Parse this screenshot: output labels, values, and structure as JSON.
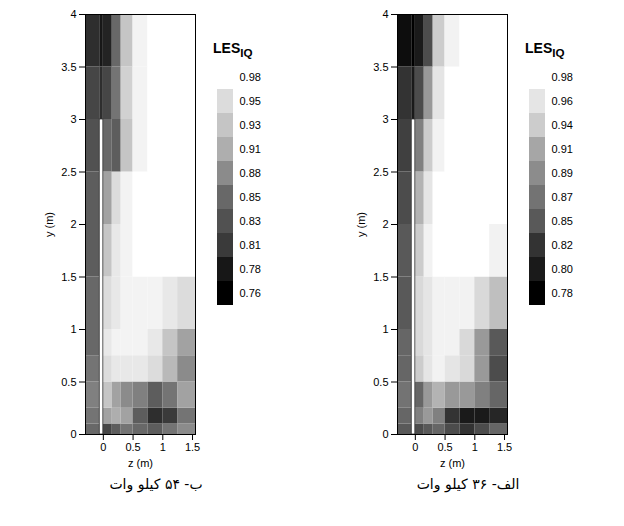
{
  "chart_data": [
    {
      "type": "heatmap",
      "caption": "ب- ۵۴ کیلو وات",
      "x_label": "z (m)",
      "y_label": "y (m)",
      "xlim": [
        -0.3,
        1.55
      ],
      "ylim": [
        0,
        4
      ],
      "xticks": [
        0,
        0.5,
        1,
        1.5
      ],
      "yticks": [
        0,
        0.5,
        1,
        1.5,
        2,
        2.5,
        3,
        3.5,
        4
      ],
      "z_edges": [
        -0.3,
        -0.06,
        0,
        0.15,
        0.3,
        0.5,
        0.75,
        1.0,
        1.25,
        1.55
      ],
      "y_edges": [
        0,
        0.1,
        0.25,
        0.5,
        0.75,
        1,
        1.5,
        2,
        2.5,
        3,
        3.5,
        4
      ],
      "cells": [
        [
          0.85,
          0.8,
          0.82,
          0.84,
          0.86,
          0.85,
          0.84,
          0.86,
          0.88
        ],
        [
          0.86,
          0.88,
          0.9,
          0.91,
          0.9,
          0.84,
          0.8,
          0.81,
          0.86
        ],
        [
          0.87,
          0.9,
          0.93,
          0.9,
          0.88,
          0.87,
          0.84,
          0.86,
          0.9
        ],
        [
          0.86,
          0.92,
          0.95,
          0.96,
          0.96,
          0.96,
          0.95,
          0.92,
          0.88
        ],
        [
          0.85,
          0.93,
          0.96,
          0.97,
          0.97,
          0.97,
          0.96,
          0.93,
          0.9
        ],
        [
          0.85,
          0.93,
          0.95,
          0.96,
          0.97,
          0.97,
          0.97,
          0.96,
          0.95
        ],
        [
          0.84,
          0.9,
          0.93,
          0.96,
          0.97,
          0.98,
          0.98,
          0.98,
          0.98
        ],
        [
          0.84,
          0.88,
          0.9,
          0.95,
          0.97,
          0.98,
          0.98,
          0.98,
          0.98
        ],
        [
          0.83,
          0.86,
          0.85,
          0.84,
          0.93,
          0.97,
          0.98,
          0.98,
          0.98
        ],
        [
          0.82,
          0.8,
          0.82,
          0.86,
          0.94,
          0.97,
          0.98,
          0.98,
          0.98
        ],
        [
          0.8,
          0.78,
          0.79,
          0.85,
          0.93,
          0.97,
          0.98,
          0.98,
          0.98
        ]
      ],
      "plate": {
        "z": [
          -0.06,
          0
        ],
        "y": [
          0,
          3
        ]
      },
      "colorbar": {
        "title": "LES",
        "title_sub": "IQ",
        "levels": [
          0.98,
          0.95,
          0.93,
          0.91,
          0.88,
          0.85,
          0.83,
          0.81,
          0.78,
          0.76
        ]
      }
    },
    {
      "type": "heatmap",
      "caption": "الف- ۳۶ کیلو وات",
      "x_label": "z (m)",
      "y_label": "y (m)",
      "xlim": [
        -0.3,
        1.55
      ],
      "ylim": [
        0,
        4
      ],
      "xticks": [
        0,
        0.5,
        1,
        1.5
      ],
      "yticks": [
        0,
        0.5,
        1,
        1.5,
        2,
        2.5,
        3,
        3.5,
        4
      ],
      "z_edges": [
        -0.3,
        -0.06,
        0,
        0.15,
        0.3,
        0.5,
        0.75,
        1.0,
        1.25,
        1.55
      ],
      "y_edges": [
        0,
        0.1,
        0.25,
        0.5,
        0.75,
        1,
        1.5,
        2,
        2.5,
        3,
        3.5,
        4
      ],
      "cells": [
        [
          0.85,
          0.8,
          0.84,
          0.85,
          0.86,
          0.84,
          0.82,
          0.84,
          0.86
        ],
        [
          0.86,
          0.86,
          0.88,
          0.9,
          0.88,
          0.82,
          0.8,
          0.8,
          0.81
        ],
        [
          0.87,
          0.88,
          0.86,
          0.9,
          0.92,
          0.9,
          0.9,
          0.88,
          0.86
        ],
        [
          0.86,
          0.9,
          0.94,
          0.96,
          0.97,
          0.96,
          0.95,
          0.9,
          0.84
        ],
        [
          0.86,
          0.92,
          0.95,
          0.96,
          0.97,
          0.97,
          0.95,
          0.9,
          0.85
        ],
        [
          0.85,
          0.92,
          0.95,
          0.96,
          0.97,
          0.97,
          0.97,
          0.95,
          0.93
        ],
        [
          0.85,
          0.9,
          0.94,
          0.97,
          0.98,
          0.98,
          0.98,
          0.98,
          0.97
        ],
        [
          0.84,
          0.88,
          0.92,
          0.96,
          0.98,
          0.98,
          0.98,
          0.98,
          0.98
        ],
        [
          0.83,
          0.85,
          0.88,
          0.94,
          0.97,
          0.98,
          0.98,
          0.98,
          0.98
        ],
        [
          0.82,
          0.8,
          0.84,
          0.9,
          0.96,
          0.98,
          0.98,
          0.98,
          0.98
        ],
        [
          0.79,
          0.78,
          0.8,
          0.84,
          0.94,
          0.97,
          0.98,
          0.98,
          0.98
        ]
      ],
      "plate": {
        "z": [
          -0.06,
          0
        ],
        "y": [
          0,
          3
        ]
      },
      "colorbar": {
        "title": "LES",
        "title_sub": "IQ",
        "levels": [
          0.98,
          0.96,
          0.94,
          0.91,
          0.89,
          0.87,
          0.85,
          0.82,
          {
            "value": 0.8,
            "label": "0.80"
          },
          0.78
        ]
      }
    }
  ]
}
